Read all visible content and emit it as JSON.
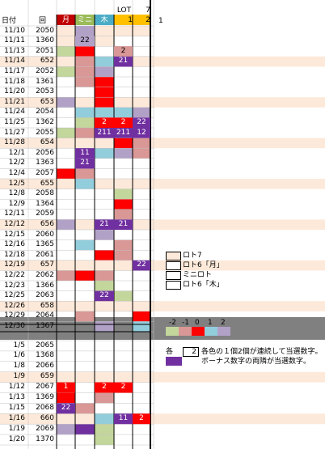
{
  "header": {
    "date_label": "日付",
    "round_label": "回",
    "col_mon": "月",
    "col_mini": "ミニ",
    "col_thu": "木",
    "col_lot": "LOT",
    "col_lot_num": "1",
    "col_7": "7",
    "col_7_num": "2",
    "col_extra": "1"
  },
  "colors": {
    "mon": "#c00000",
    "mini": "#9bbb59",
    "thu": "#4bacc6",
    "lot": "#ffc000",
    "beige": "#fde9d9",
    "green": "#c3d69b",
    "pink": "#d99795",
    "red": "#ff0000",
    "blue": "#92cddc",
    "lav": "#b2a1c7",
    "purple": "#7030a0",
    "gray": "#808080"
  },
  "rows": [
    {
      "date": "11/10",
      "num": "2050",
      "hl": false
    },
    {
      "date": "11/11",
      "num": "1360",
      "hl": false
    },
    {
      "date": "11/13",
      "num": "2051",
      "hl": false
    },
    {
      "date": "11/14",
      "num": "652",
      "hl": true
    },
    {
      "date": "11/17",
      "num": "2052",
      "hl": false
    },
    {
      "date": "11/18",
      "num": "1361",
      "hl": false
    },
    {
      "date": "11/20",
      "num": "2053",
      "hl": false
    },
    {
      "date": "11/21",
      "num": "653",
      "hl": true
    },
    {
      "date": "11/24",
      "num": "2054",
      "hl": false
    },
    {
      "date": "11/25",
      "num": "1362",
      "hl": false
    },
    {
      "date": "11/27",
      "num": "2055",
      "hl": false
    },
    {
      "date": "11/28",
      "num": "654",
      "hl": true
    },
    {
      "date": "12/1",
      "num": "2056",
      "hl": false
    },
    {
      "date": "12/2",
      "num": "1363",
      "hl": false
    },
    {
      "date": "12/4",
      "num": "2057",
      "hl": false
    },
    {
      "date": "12/5",
      "num": "655",
      "hl": true
    },
    {
      "date": "12/8",
      "num": "2058",
      "hl": false
    },
    {
      "date": "12/9",
      "num": "1364",
      "hl": false
    },
    {
      "date": "12/11",
      "num": "2059",
      "hl": false
    },
    {
      "date": "12/12",
      "num": "656",
      "hl": true
    },
    {
      "date": "12/15",
      "num": "2060",
      "hl": false
    },
    {
      "date": "12/16",
      "num": "1365",
      "hl": false
    },
    {
      "date": "12/18",
      "num": "2061",
      "hl": false
    },
    {
      "date": "12/19",
      "num": "657",
      "hl": true
    },
    {
      "date": "12/22",
      "num": "2062",
      "hl": false
    },
    {
      "date": "12/23",
      "num": "1366",
      "hl": false
    },
    {
      "date": "12/25",
      "num": "2063",
      "hl": false
    },
    {
      "date": "12/26",
      "num": "658",
      "hl": true
    },
    {
      "date": "12/29",
      "num": "2064",
      "hl": false
    },
    {
      "date": "12/30",
      "num": "1367",
      "hl": false
    }
  ],
  "rows2": [
    {
      "date": "1/5",
      "num": "2065",
      "hl": false
    },
    {
      "date": "1/6",
      "num": "1368",
      "hl": false
    },
    {
      "date": "1/8",
      "num": "2066",
      "hl": false
    },
    {
      "date": "1/9",
      "num": "659",
      "hl": true
    },
    {
      "date": "1/12",
      "num": "2067",
      "hl": false
    },
    {
      "date": "1/13",
      "num": "1369",
      "hl": false
    },
    {
      "date": "1/15",
      "num": "2068",
      "hl": false
    },
    {
      "date": "1/16",
      "num": "660",
      "hl": true
    },
    {
      "date": "1/19",
      "num": "2069",
      "hl": false
    },
    {
      "date": "1/20",
      "num": "1370",
      "hl": false
    }
  ],
  "marks": [
    {
      "r": 1,
      "c": 1,
      "t": "22",
      "col": "lav"
    },
    {
      "r": 2,
      "c": 3,
      "t": "2",
      "col": "pink"
    },
    {
      "r": 3,
      "c": 3,
      "t": "21",
      "col": "purple"
    },
    {
      "r": 9,
      "c": 2,
      "t": "2",
      "col": "red"
    },
    {
      "r": 9,
      "c": 3,
      "t": "2",
      "col": "red"
    },
    {
      "r": 9,
      "c": 4,
      "t": "22",
      "col": "purple"
    },
    {
      "r": 10,
      "c": 2,
      "t": "211",
      "col": "purple"
    },
    {
      "r": 10,
      "c": 3,
      "t": "211",
      "col": "purple"
    },
    {
      "r": 10,
      "c": 4,
      "t": "12",
      "col": "purple"
    },
    {
      "r": 12,
      "c": 1,
      "t": "11",
      "col": "purple"
    },
    {
      "r": 13,
      "c": 1,
      "t": "21",
      "col": "purple"
    },
    {
      "r": 19,
      "c": 2,
      "t": "21",
      "col": "purple"
    },
    {
      "r": 19,
      "c": 3,
      "t": "21",
      "col": "purple"
    },
    {
      "r": 23,
      "c": 4,
      "t": "22",
      "col": "purple"
    },
    {
      "r": 26,
      "c": 2,
      "t": "22",
      "col": "purple"
    },
    {
      "r": 34,
      "c": 0,
      "t": "1",
      "col": "red"
    },
    {
      "r": 34,
      "c": 2,
      "t": "2",
      "col": "red"
    },
    {
      "r": 34,
      "c": 3,
      "t": "2",
      "col": "red"
    },
    {
      "r": 36,
      "c": 0,
      "t": "22",
      "col": "purple"
    },
    {
      "r": 37,
      "c": 3,
      "t": "11",
      "col": "purple"
    },
    {
      "r": 37,
      "c": 4,
      "t": "2",
      "col": "red"
    }
  ],
  "fills": [
    [
      0,
      0,
      "beige"
    ],
    [
      0,
      1,
      "lav"
    ],
    [
      0,
      2,
      "beige"
    ],
    [
      0,
      3,
      "beige"
    ],
    [
      0,
      4,
      "beige"
    ],
    [
      1,
      0,
      "beige"
    ],
    [
      1,
      1,
      "lav"
    ],
    [
      1,
      2,
      "beige"
    ],
    [
      2,
      0,
      "green"
    ],
    [
      2,
      1,
      "red"
    ],
    [
      2,
      3,
      "pink"
    ],
    [
      3,
      0,
      "beige"
    ],
    [
      3,
      1,
      "pink"
    ],
    [
      3,
      2,
      "blue"
    ],
    [
      3,
      3,
      "purple"
    ],
    [
      3,
      4,
      "beige"
    ],
    [
      4,
      0,
      "green"
    ],
    [
      4,
      1,
      "pink"
    ],
    [
      4,
      2,
      "lav"
    ],
    [
      5,
      1,
      "pink"
    ],
    [
      5,
      2,
      "red"
    ],
    [
      6,
      2,
      "red"
    ],
    [
      7,
      0,
      "lav"
    ],
    [
      7,
      1,
      "beige"
    ],
    [
      7,
      2,
      "red"
    ],
    [
      7,
      3,
      "beige"
    ],
    [
      7,
      4,
      "beige"
    ],
    [
      8,
      1,
      "blue"
    ],
    [
      8,
      2,
      "blue"
    ],
    [
      8,
      3,
      "blue"
    ],
    [
      8,
      4,
      "lav"
    ],
    [
      9,
      1,
      "green"
    ],
    [
      9,
      2,
      "red"
    ],
    [
      9,
      3,
      "red"
    ],
    [
      9,
      4,
      "purple"
    ],
    [
      10,
      0,
      "green"
    ],
    [
      10,
      1,
      "pink"
    ],
    [
      10,
      2,
      "purple"
    ],
    [
      10,
      3,
      "purple"
    ],
    [
      10,
      4,
      "purple"
    ],
    [
      11,
      0,
      "beige"
    ],
    [
      11,
      1,
      "beige"
    ],
    [
      11,
      2,
      "beige"
    ],
    [
      11,
      3,
      "red"
    ],
    [
      11,
      4,
      "pink"
    ],
    [
      12,
      1,
      "purple"
    ],
    [
      12,
      2,
      "blue"
    ],
    [
      12,
      3,
      "lav"
    ],
    [
      12,
      4,
      "pink"
    ],
    [
      13,
      1,
      "purple"
    ],
    [
      14,
      0,
      "red"
    ],
    [
      14,
      1,
      "pink"
    ],
    [
      15,
      0,
      "beige"
    ],
    [
      15,
      1,
      "blue"
    ],
    [
      15,
      2,
      "beige"
    ],
    [
      15,
      3,
      "beige"
    ],
    [
      15,
      4,
      "beige"
    ],
    [
      16,
      3,
      "green"
    ],
    [
      17,
      3,
      "red"
    ],
    [
      18,
      3,
      "pink"
    ],
    [
      19,
      0,
      "lav"
    ],
    [
      19,
      1,
      "beige"
    ],
    [
      19,
      2,
      "purple"
    ],
    [
      19,
      3,
      "purple"
    ],
    [
      19,
      4,
      "beige"
    ],
    [
      20,
      2,
      "lav"
    ],
    [
      21,
      1,
      "blue"
    ],
    [
      21,
      3,
      "pink"
    ],
    [
      22,
      2,
      "red"
    ],
    [
      22,
      3,
      "pink"
    ],
    [
      23,
      0,
      "beige"
    ],
    [
      23,
      1,
      "beige"
    ],
    [
      23,
      2,
      "beige"
    ],
    [
      23,
      3,
      "beige"
    ],
    [
      23,
      4,
      "purple"
    ],
    [
      24,
      0,
      "pink"
    ],
    [
      24,
      1,
      "red"
    ],
    [
      24,
      2,
      "pink"
    ],
    [
      25,
      2,
      "green"
    ],
    [
      26,
      2,
      "purple"
    ],
    [
      26,
      3,
      "green"
    ],
    [
      27,
      0,
      "beige"
    ],
    [
      27,
      1,
      "beige"
    ],
    [
      27,
      2,
      "beige"
    ],
    [
      27,
      3,
      "beige"
    ],
    [
      27,
      4,
      "beige"
    ],
    [
      28,
      1,
      "pink"
    ],
    [
      28,
      4,
      "red"
    ],
    [
      29,
      2,
      "lav"
    ],
    [
      29,
      4,
      "blue"
    ],
    [
      33,
      0,
      "beige"
    ],
    [
      33,
      1,
      "beige"
    ],
    [
      33,
      2,
      "beige"
    ],
    [
      33,
      3,
      "beige"
    ],
    [
      33,
      4,
      "beige"
    ],
    [
      34,
      0,
      "red"
    ],
    [
      34,
      2,
      "red"
    ],
    [
      34,
      3,
      "red"
    ],
    [
      35,
      0,
      "red"
    ],
    [
      35,
      2,
      "pink"
    ],
    [
      36,
      0,
      "purple"
    ],
    [
      36,
      1,
      "pink"
    ],
    [
      37,
      0,
      "beige"
    ],
    [
      37,
      1,
      "beige"
    ],
    [
      37,
      2,
      "blue"
    ],
    [
      37,
      3,
      "purple"
    ],
    [
      37,
      4,
      "red"
    ],
    [
      38,
      0,
      "lav"
    ],
    [
      38,
      1,
      "purple"
    ],
    [
      38,
      2,
      "green"
    ],
    [
      39,
      2,
      "green"
    ]
  ],
  "legend": {
    "items": [
      "ロト7",
      "ロト6「月」",
      "ミニロト",
      "ロト6「木」"
    ],
    "scale_labels": [
      "-2",
      "-1",
      "0",
      "1",
      "2"
    ],
    "note_each": "各",
    "note_box": "2",
    "note_line1": "各色の１個2個が連続して当選数字。",
    "note_line2": "ボーナス数字の両隣が当選数字。"
  }
}
